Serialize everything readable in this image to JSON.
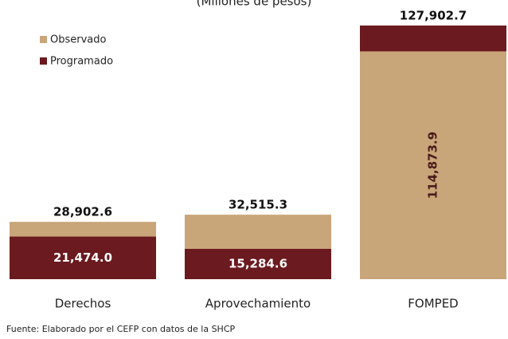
{
  "chart_data": {
    "type": "overlap_bar",
    "subtitle": "(Millones de pesos)",
    "categories": [
      "Derechos",
      "Aprovechamiento",
      "FOMPED"
    ],
    "series": [
      {
        "name": "Observado",
        "color": "#c9a57a",
        "values": [
          28902.6,
          32515.3,
          114873.9
        ],
        "value_labels": [
          "28,902.6",
          "32,515.3",
          "114,873.9"
        ]
      },
      {
        "name": "Programado",
        "color": "#6b1a1f",
        "values": [
          21474.0,
          15284.6,
          127902.7
        ],
        "value_labels": [
          "21,474.0",
          "15,284.6",
          "127,902.7"
        ]
      }
    ],
    "legend": "upper left",
    "source": "Fuente: Elaborado por el CEFP con datos de la SHCP"
  }
}
